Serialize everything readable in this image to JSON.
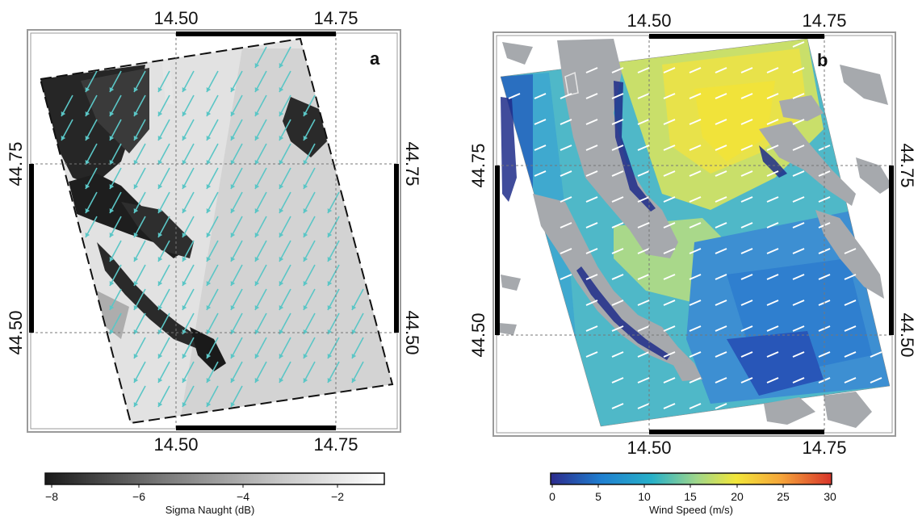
{
  "panels": {
    "a": {
      "letter": "a",
      "lon_ticks": [
        "14.50",
        "14.75"
      ],
      "lat_ticks": [
        "44.75",
        "44.50"
      ],
      "colorbar": {
        "label": "Sigma Naught (dB)",
        "ticks": [
          "−8",
          "−6",
          "−4",
          "−2"
        ],
        "colors": [
          "#1a1a1a",
          "#7a7a7a",
          "#c8c8c8",
          "#ffffff"
        ]
      },
      "arrow_color": "#5bc6c6"
    },
    "b": {
      "letter": "b",
      "lon_ticks": [
        "14.50",
        "14.75"
      ],
      "lat_ticks": [
        "44.75",
        "44.50"
      ],
      "colorbar": {
        "label": "Wind Speed (m/s)",
        "ticks": [
          "0",
          "5",
          "10",
          "15",
          "20",
          "25",
          "30"
        ],
        "colors": [
          "#2c2a8c",
          "#1f7fd0",
          "#27b0c8",
          "#9fd68a",
          "#f2e63a",
          "#f5a53a",
          "#d8342a"
        ]
      },
      "land_color": "#a6a9ad",
      "arrow_color": "#ffffff"
    }
  }
}
